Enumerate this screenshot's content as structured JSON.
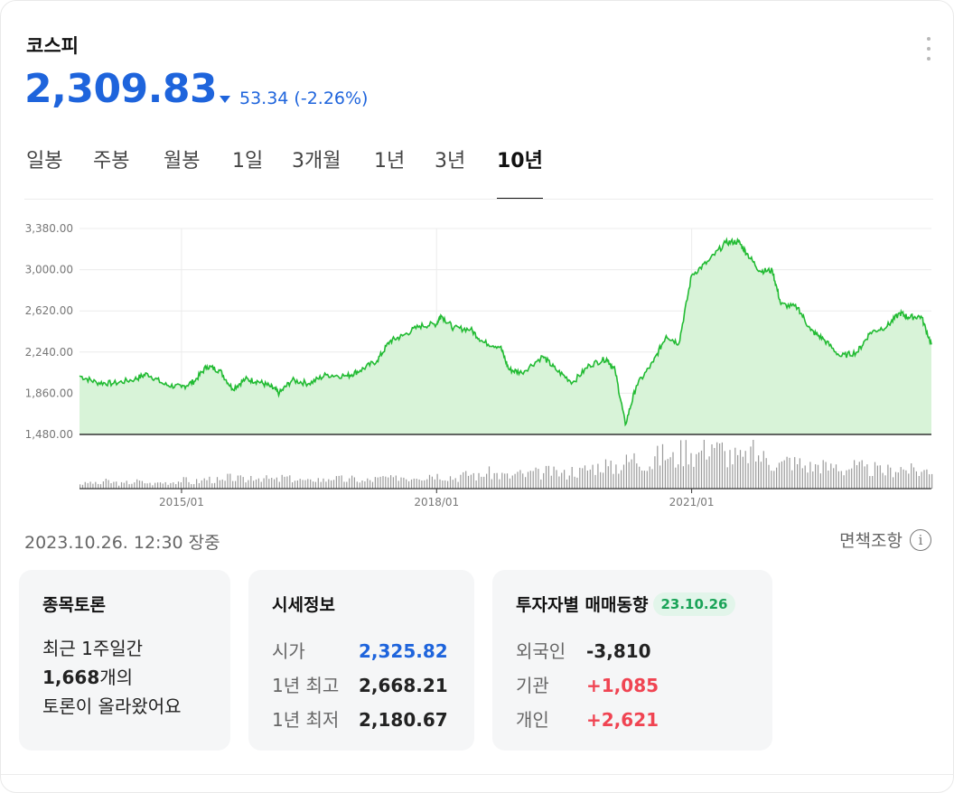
{
  "header": {
    "title": "코스피",
    "price": "2,309.83",
    "change": "53.34 (-2.26%)",
    "direction": "down",
    "down_color": "#1e64dc",
    "up_color": "#f04452"
  },
  "tabs": [
    {
      "label": "일봉",
      "active": false
    },
    {
      "label": "주봉",
      "active": false
    },
    {
      "label": "월봉",
      "active": false
    },
    {
      "label": "1일",
      "active": false
    },
    {
      "label": "3개월",
      "active": false
    },
    {
      "label": "1년",
      "active": false
    },
    {
      "label": "3년",
      "active": false
    },
    {
      "label": "10년",
      "active": true
    }
  ],
  "chart_data": {
    "type": "area",
    "line_color": "#22bb33",
    "fill_color": "#d8f3d8",
    "ylim": [
      1480,
      3380
    ],
    "y_ticks": [
      "3,380.00",
      "3,000.00",
      "2,620.00",
      "2,240.00",
      "1,860.00",
      "1,480.00"
    ],
    "x_tick_labels": [
      "2015/01",
      "2018/01",
      "2021/01"
    ],
    "x_range": [
      2013.8,
      2023.82
    ],
    "points": [
      [
        2013.8,
        2020
      ],
      [
        2014.0,
        1960
      ],
      [
        2014.2,
        1950
      ],
      [
        2014.45,
        1990
      ],
      [
        2014.6,
        2040
      ],
      [
        2014.8,
        1940
      ],
      [
        2015.0,
        1915
      ],
      [
        2015.15,
        1970
      ],
      [
        2015.3,
        2110
      ],
      [
        2015.45,
        2070
      ],
      [
        2015.6,
        1900
      ],
      [
        2015.75,
        1990
      ],
      [
        2015.9,
        1970
      ],
      [
        2016.05,
        1920
      ],
      [
        2016.15,
        1860
      ],
      [
        2016.3,
        1980
      ],
      [
        2016.5,
        1950
      ],
      [
        2016.7,
        2030
      ],
      [
        2016.95,
        2020
      ],
      [
        2017.1,
        2070
      ],
      [
        2017.3,
        2160
      ],
      [
        2017.45,
        2340
      ],
      [
        2017.6,
        2390
      ],
      [
        2017.8,
        2480
      ],
      [
        2018.0,
        2500
      ],
      [
        2018.05,
        2580
      ],
      [
        2018.2,
        2460
      ],
      [
        2018.4,
        2450
      ],
      [
        2018.55,
        2330
      ],
      [
        2018.75,
        2290
      ],
      [
        2018.85,
        2080
      ],
      [
        2019.0,
        2050
      ],
      [
        2019.25,
        2200
      ],
      [
        2019.4,
        2080
      ],
      [
        2019.6,
        1960
      ],
      [
        2019.8,
        2120
      ],
      [
        2020.0,
        2180
      ],
      [
        2020.1,
        2070
      ],
      [
        2020.22,
        1570
      ],
      [
        2020.35,
        1930
      ],
      [
        2020.55,
        2150
      ],
      [
        2020.7,
        2390
      ],
      [
        2020.85,
        2320
      ],
      [
        2021.0,
        2950
      ],
      [
        2021.2,
        3080
      ],
      [
        2021.4,
        3250
      ],
      [
        2021.55,
        3260
      ],
      [
        2021.65,
        3150
      ],
      [
        2021.8,
        2990
      ],
      [
        2021.95,
        2990
      ],
      [
        2022.05,
        2680
      ],
      [
        2022.25,
        2650
      ],
      [
        2022.4,
        2440
      ],
      [
        2022.55,
        2360
      ],
      [
        2022.75,
        2200
      ],
      [
        2022.95,
        2240
      ],
      [
        2023.1,
        2420
      ],
      [
        2023.3,
        2480
      ],
      [
        2023.45,
        2600
      ],
      [
        2023.55,
        2560
      ],
      [
        2023.7,
        2570
      ],
      [
        2023.82,
        2310
      ]
    ],
    "volume": [
      4,
      5,
      4,
      6,
      5,
      4,
      5,
      6,
      5,
      4,
      5,
      5,
      6,
      7,
      5,
      6,
      8,
      7,
      6,
      9,
      8,
      7,
      10,
      9,
      8,
      7,
      9,
      8,
      7,
      6,
      8,
      7,
      9,
      8,
      7,
      8,
      6,
      7,
      8,
      9,
      8,
      10,
      9,
      11,
      10,
      12,
      11,
      10,
      9,
      11,
      12,
      10,
      13,
      12,
      11,
      10,
      12,
      11,
      13,
      12,
      14,
      13,
      12,
      15,
      14,
      16,
      18,
      20,
      17,
      19,
      22,
      25,
      23,
      21,
      26,
      28,
      24,
      30,
      33,
      28,
      35,
      38,
      32,
      28,
      26,
      24,
      30,
      27,
      25,
      22,
      20,
      23,
      21,
      19,
      18,
      20,
      17,
      19,
      16,
      18,
      17,
      15,
      16,
      14,
      15,
      17,
      16,
      15,
      14,
      16
    ]
  },
  "status": {
    "timestamp": "2023.10.26. 12:30 장중",
    "disclaimer": "면책조항",
    "info_icon": "info-circle-icon"
  },
  "discussion": {
    "title": "종목토론",
    "line1": "최근 1주일간",
    "count": "1,668",
    "count_suffix": "개의",
    "line3": "토론이 올라왔어요"
  },
  "price_info": {
    "title": "시세정보",
    "rows": [
      {
        "label": "시가",
        "value": "2,325.82"
      },
      {
        "label": "1년 최고",
        "value": "2,668.21"
      },
      {
        "label": "1년 최저",
        "value": "2,180.67"
      }
    ]
  },
  "investors": {
    "title": "투자자별 매매동향",
    "date": "23.10.26",
    "rows": [
      {
        "label": "외국인",
        "value": "-3,810"
      },
      {
        "label": "기관",
        "value": "+1,085"
      },
      {
        "label": "개인",
        "value": "+2,621"
      }
    ]
  }
}
